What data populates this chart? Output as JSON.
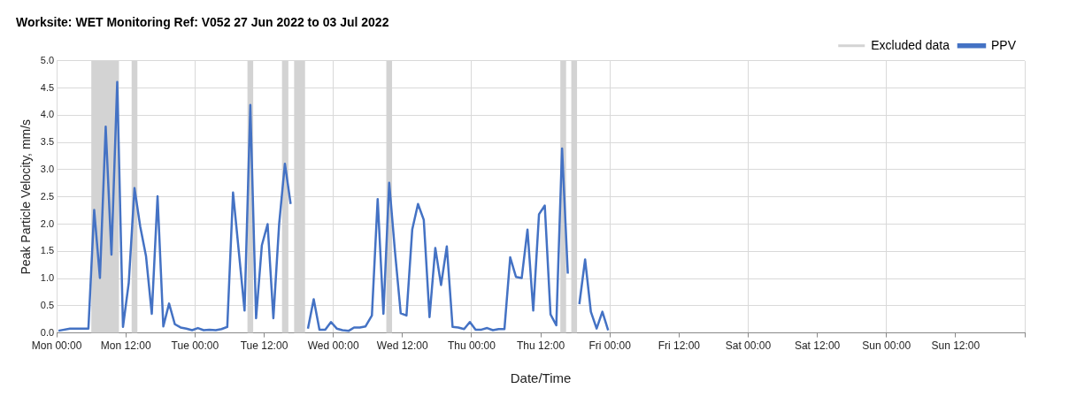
{
  "chart_data": {
    "type": "line",
    "title": "Worksite: WET Monitoring Ref: V052 27 Jun 2022 to 03 Jul 2022",
    "xlabel": "Date/Time",
    "ylabel": "Peak Particle Velocity, mm/s",
    "xlim": [
      "2022-06-27T00:00",
      "2022-07-04T00:00"
    ],
    "xticks": [
      {
        "value": "2022-06-27T00:00",
        "label": "Mon 00:00"
      },
      {
        "value": "2022-06-27T12:00",
        "label": "Mon 12:00"
      },
      {
        "value": "2022-06-28T00:00",
        "label": "Tue 00:00"
      },
      {
        "value": "2022-06-28T12:00",
        "label": "Tue 12:00"
      },
      {
        "value": "2022-06-29T00:00",
        "label": "Wed 00:00"
      },
      {
        "value": "2022-06-29T12:00",
        "label": "Wed 12:00"
      },
      {
        "value": "2022-06-30T00:00",
        "label": "Thu 00:00"
      },
      {
        "value": "2022-06-30T12:00",
        "label": "Thu 12:00"
      },
      {
        "value": "2022-07-01T00:00",
        "label": "Fri 00:00"
      },
      {
        "value": "2022-07-01T12:00",
        "label": "Fri 12:00"
      },
      {
        "value": "2022-07-02T00:00",
        "label": "Sat 00:00"
      },
      {
        "value": "2022-07-02T12:00",
        "label": "Sat 12:00"
      },
      {
        "value": "2022-07-03T00:00",
        "label": "Sun 00:00"
      },
      {
        "value": "2022-07-03T12:00",
        "label": "Sun 12:00"
      },
      {
        "value": "2022-07-04T00:00",
        "label": null
      }
    ],
    "ylim": [
      0,
      5
    ],
    "yticks": [
      {
        "value": 0,
        "label": "0.0"
      },
      {
        "value": 0.5,
        "label": "0.5"
      },
      {
        "value": 1,
        "label": "1.0"
      },
      {
        "value": 1.5,
        "label": "1.5"
      },
      {
        "value": 2,
        "label": "2.0"
      },
      {
        "value": 2.5,
        "label": "2.5"
      },
      {
        "value": 3,
        "label": "3.0"
      },
      {
        "value": 3.5,
        "label": "3.5"
      },
      {
        "value": 4,
        "label": "4.0"
      },
      {
        "value": 4.5,
        "label": "4.5"
      },
      {
        "value": 5,
        "label": "5.0"
      }
    ],
    "grid": true,
    "legend": "top right",
    "marker": "none",
    "line_style": "solid",
    "bands": [
      {
        "axis": "x",
        "from": "2022-06-27T06:00",
        "to": "2022-06-27T10:48",
        "label": "Excluded data",
        "color": "#d3d3d3"
      },
      {
        "axis": "x",
        "from": "2022-06-27T13:00",
        "to": "2022-06-27T14:00",
        "color": "#d3d3d3"
      },
      {
        "axis": "x",
        "from": "2022-06-28T09:06",
        "to": "2022-06-28T10:06",
        "color": "#d3d3d3"
      },
      {
        "axis": "x",
        "from": "2022-06-28T15:06",
        "to": "2022-06-28T16:12",
        "color": "#d3d3d3"
      },
      {
        "axis": "x",
        "from": "2022-06-28T17:12",
        "to": "2022-06-28T19:06",
        "color": "#d3d3d3"
      },
      {
        "axis": "x",
        "from": "2022-06-29T09:12",
        "to": "2022-06-29T10:12",
        "color": "#d3d3d3"
      },
      {
        "axis": "x",
        "from": "2022-06-30T15:24",
        "to": "2022-06-30T16:24",
        "color": "#d3d3d3"
      },
      {
        "axis": "x",
        "from": "2022-06-30T17:18",
        "to": "2022-06-30T18:18",
        "color": "#d3d3d3"
      }
    ],
    "series": [
      {
        "name": "PPV",
        "color": "#4472c4",
        "x": [
          "2022-06-27T00:18",
          "2022-06-27T02:18",
          "2022-06-27T05:30",
          "2022-06-27T06:30",
          "2022-06-27T07:30",
          "2022-06-27T08:30",
          "2022-06-27T09:30",
          "2022-06-27T10:30",
          "2022-06-27T11:30",
          "2022-06-27T12:30",
          "2022-06-27T13:30",
          "2022-06-27T14:30",
          "2022-06-27T15:30",
          "2022-06-27T16:30",
          "2022-06-27T17:30",
          "2022-06-27T18:30",
          "2022-06-27T19:30",
          "2022-06-27T20:30",
          "2022-06-27T21:30",
          "2022-06-27T22:30",
          "2022-06-27T23:30",
          "2022-06-28T00:30",
          "2022-06-28T01:30",
          "2022-06-28T02:30",
          "2022-06-28T03:36",
          "2022-06-28T04:36",
          "2022-06-28T05:36",
          "2022-06-28T06:36",
          "2022-06-28T07:36",
          "2022-06-28T08:36",
          "2022-06-28T09:36",
          "2022-06-28T10:36",
          "2022-06-28T11:36",
          "2022-06-28T12:36",
          "2022-06-28T13:36",
          "2022-06-28T14:36",
          "2022-06-28T15:36",
          "2022-06-28T16:36",
          "2022-06-28T17:36",
          "2022-06-28T18:36",
          "2022-06-28T19:36",
          "2022-06-28T20:36",
          "2022-06-28T21:36",
          "2022-06-28T22:36",
          "2022-06-28T23:36",
          "2022-06-29T00:36",
          "2022-06-29T01:36",
          "2022-06-29T02:42",
          "2022-06-29T03:36",
          "2022-06-29T04:36",
          "2022-06-29T05:36",
          "2022-06-29T06:42",
          "2022-06-29T07:42",
          "2022-06-29T08:42",
          "2022-06-29T09:42",
          "2022-06-29T10:42",
          "2022-06-29T11:42",
          "2022-06-29T12:42",
          "2022-06-29T13:42",
          "2022-06-29T14:42",
          "2022-06-29T15:42",
          "2022-06-29T16:42",
          "2022-06-29T17:42",
          "2022-06-29T18:42",
          "2022-06-29T19:42",
          "2022-06-29T20:42",
          "2022-06-29T21:42",
          "2022-06-29T22:42",
          "2022-06-29T23:42",
          "2022-06-30T00:42",
          "2022-06-30T01:42",
          "2022-06-30T02:42",
          "2022-06-30T03:42",
          "2022-06-30T04:42",
          "2022-06-30T05:42",
          "2022-06-30T06:42",
          "2022-06-30T07:42",
          "2022-06-30T08:42",
          "2022-06-30T09:42",
          "2022-06-30T10:42",
          "2022-06-30T11:42",
          "2022-06-30T12:42",
          "2022-06-30T13:42",
          "2022-06-30T14:42",
          "2022-06-30T15:42",
          "2022-06-30T16:42",
          "2022-06-30T17:42",
          "2022-06-30T18:42",
          "2022-06-30T19:42",
          "2022-06-30T20:42",
          "2022-06-30T21:42",
          "2022-06-30T22:42",
          "2022-06-30T23:42"
        ],
        "values": [
          0.04,
          0.08,
          0.08,
          2.26,
          1.01,
          3.79,
          1.44,
          4.61,
          0.11,
          0.92,
          2.66,
          1.95,
          1.41,
          0.35,
          2.51,
          0.12,
          0.54,
          0.16,
          0.1,
          0.08,
          0.05,
          0.09,
          0.05,
          0.06,
          0.05,
          0.07,
          0.11,
          2.58,
          1.5,
          0.41,
          4.19,
          0.27,
          1.61,
          2.0,
          0.27,
          2.0,
          3.11,
          2.37,
          null,
          null,
          0.08,
          0.62,
          0.06,
          0.06,
          0.2,
          0.08,
          0.05,
          0.04,
          0.1,
          0.1,
          0.12,
          0.32,
          2.46,
          0.35,
          2.76,
          1.5,
          0.36,
          0.32,
          1.9,
          2.37,
          2.08,
          0.29,
          1.56,
          0.88,
          1.59,
          0.11,
          0.1,
          0.07,
          0.2,
          0.06,
          0.06,
          0.09,
          0.05,
          0.07,
          0.07,
          1.39,
          1.03,
          1.01,
          1.9,
          0.41,
          2.18,
          2.34,
          0.34,
          0.14,
          3.39,
          1.09,
          null,
          0.53,
          1.35,
          0.39,
          0.08,
          0.39,
          0.05
        ]
      }
    ]
  }
}
